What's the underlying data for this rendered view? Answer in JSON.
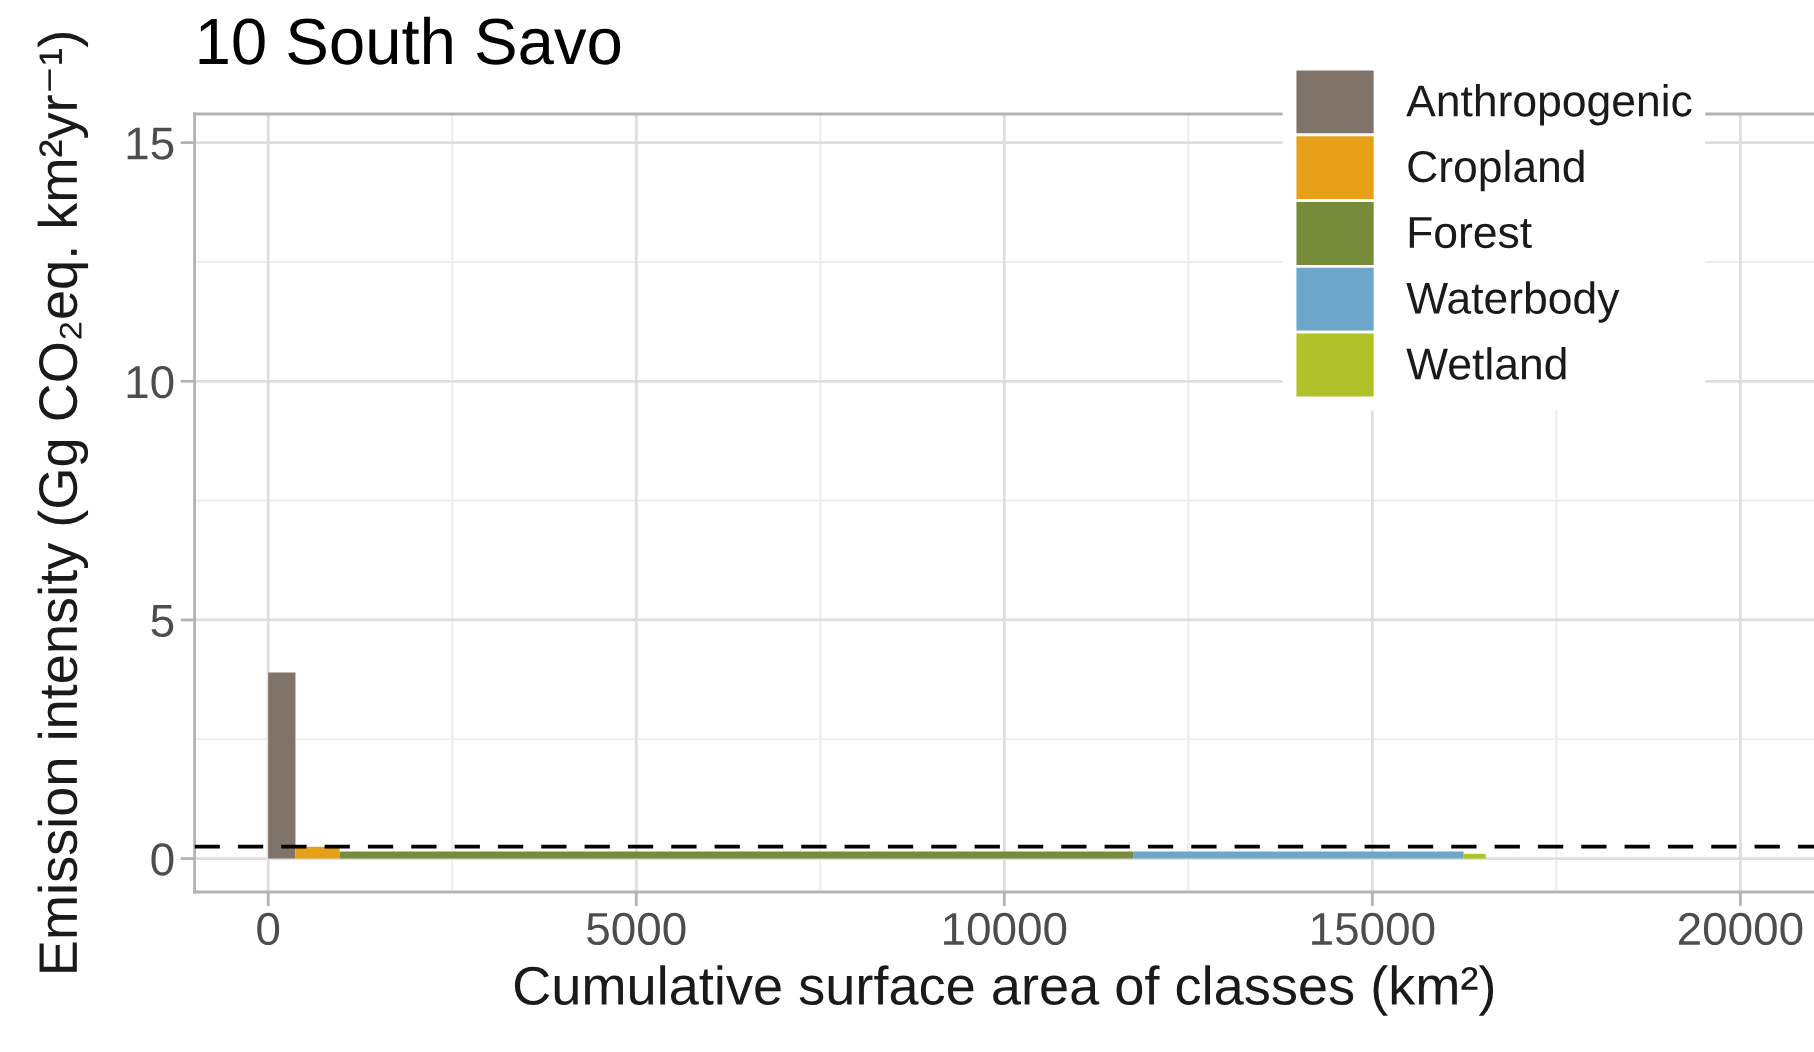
{
  "chart_data": {
    "type": "area",
    "title": "10 South Savo",
    "xlabel": "Cumulative surface area of classes (km²)",
    "ylabel": "Emission intensity (Gg CO₂eq. km²yr⁻¹)",
    "series": [
      {
        "name": "Anthropogenic",
        "color": "#80746a",
        "x": [
          0,
          370
        ],
        "values": [
          3.9,
          3.9
        ]
      },
      {
        "name": "Cropland",
        "color": "#e6a118",
        "x": [
          370,
          970
        ],
        "values": [
          0.25,
          0.25
        ]
      },
      {
        "name": "Forest",
        "color": "#778c3b",
        "x": [
          970,
          11750
        ],
        "values": [
          0.15,
          0.15
        ]
      },
      {
        "name": "Waterbody",
        "color": "#6ea6ca",
        "x": [
          11750,
          16240
        ],
        "values": [
          0.15,
          0.15
        ]
      },
      {
        "name": "Wetland",
        "color": "#aec22a",
        "x": [
          16240,
          16540
        ],
        "values": [
          0.1,
          0.1
        ]
      }
    ],
    "xlim": [
      -1000,
      21000
    ],
    "ylim": [
      -0.7,
      15.6
    ],
    "xticks": [
      0,
      5000,
      10000,
      15000,
      20000
    ],
    "yticks": [
      0,
      5,
      10,
      15
    ],
    "grid": true,
    "legend": "top right",
    "ref_lines": [
      {
        "axis": "y",
        "value": 0.25,
        "line_style": "dashed",
        "color": "#000000"
      }
    ]
  }
}
